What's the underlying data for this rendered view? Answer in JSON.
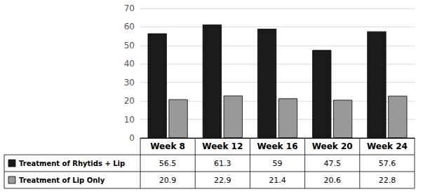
{
  "chart_data": {
    "type": "bar",
    "categories": [
      "Week 8",
      "Week 12",
      "Week 16",
      "Week 20",
      "Week 24"
    ],
    "series": [
      {
        "name": "Treatment of Rhytids + Lip",
        "color": "#1a1a1a",
        "values": [
          56.5,
          61.3,
          59,
          47.5,
          57.6
        ]
      },
      {
        "name": "Treatment of Lip Only",
        "color": "#999999",
        "values": [
          20.9,
          22.9,
          21.4,
          20.6,
          22.8
        ]
      }
    ],
    "ylim": [
      0,
      70
    ],
    "yticks": [
      0,
      10,
      20,
      30,
      40,
      50,
      60,
      70
    ],
    "grid": true,
    "legend": "bottom"
  }
}
